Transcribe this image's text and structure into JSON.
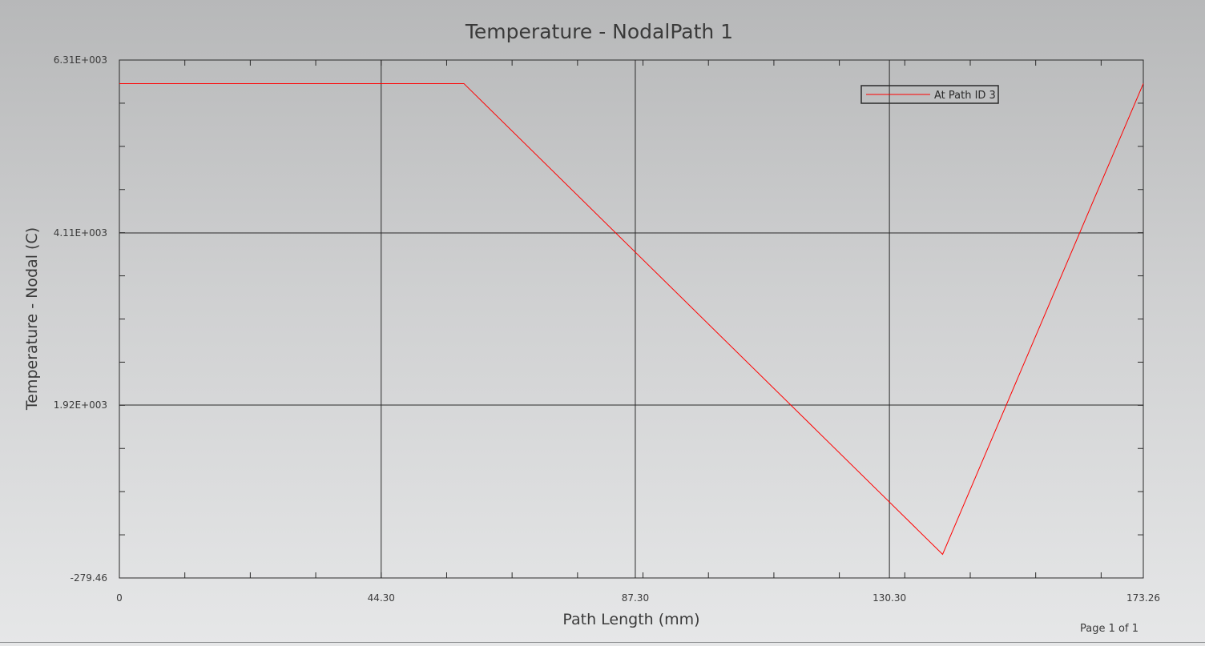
{
  "chart_data": {
    "type": "line",
    "title": "Temperature - NodalPath 1",
    "xlabel": "Path Length (mm)",
    "ylabel": "Temperature - Nodal (C)",
    "xlim": [
      0,
      173.26
    ],
    "ylim": [
      -279.46,
      6310
    ],
    "x_ticks": [
      0,
      44.3,
      87.3,
      130.3,
      173.26
    ],
    "x_tick_labels": [
      "0",
      "44.30",
      "87.30",
      "130.30",
      "173.26"
    ],
    "y_ticks": [
      -279.46,
      1920,
      4110,
      6310
    ],
    "y_tick_labels": [
      "-279.46",
      "1.92E+003",
      "4.11E+003",
      "6.31E+003"
    ],
    "grid": true,
    "legend_position": "top-right",
    "series": [
      {
        "name": "At Path ID 3",
        "color": "#ff0000",
        "x": [
          0,
          58.3,
          139.3,
          173.26
        ],
        "y": [
          6010,
          6010,
          21,
          6010
        ]
      }
    ]
  },
  "footer": {
    "page_label": "Page 1 of 1"
  }
}
